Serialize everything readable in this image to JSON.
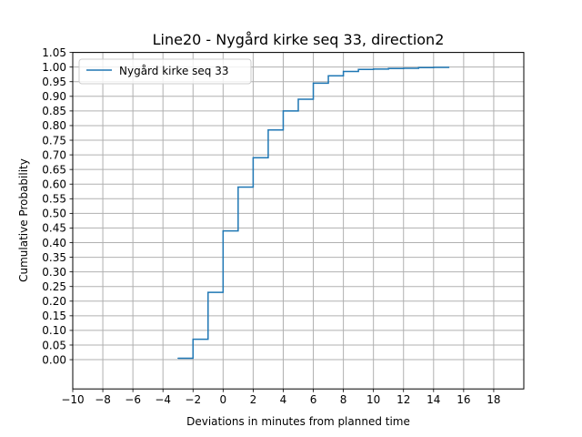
{
  "chart_data": {
    "type": "line",
    "step": "post",
    "title": "Line20 - Nygård kirke seq 33, direction2",
    "xlabel": "Deviations in minutes from planned time",
    "ylabel": "Cumulative Probability",
    "xlim": [
      -10,
      20
    ],
    "ylim": [
      -0.1,
      1.05
    ],
    "xticks": [
      -10,
      -8,
      -6,
      -4,
      -2,
      0,
      2,
      4,
      6,
      8,
      10,
      12,
      14,
      16,
      18
    ],
    "xtick_labels": [
      "−10",
      "−8",
      "−6",
      "−4",
      "−2",
      "0",
      "2",
      "4",
      "6",
      "8",
      "10",
      "12",
      "14",
      "16",
      "18"
    ],
    "yticks": [
      0.0,
      0.05,
      0.1,
      0.15,
      0.2,
      0.25,
      0.3,
      0.35,
      0.4,
      0.45,
      0.5,
      0.55,
      0.6,
      0.65,
      0.7,
      0.75,
      0.8,
      0.85,
      0.9,
      0.95,
      1.0,
      1.05
    ],
    "ytick_labels": [
      "0.00",
      "0.05",
      "0.10",
      "0.15",
      "0.20",
      "0.25",
      "0.30",
      "0.35",
      "0.40",
      "0.45",
      "0.50",
      "0.55",
      "0.60",
      "0.65",
      "0.70",
      "0.75",
      "0.80",
      "0.85",
      "0.90",
      "0.95",
      "1.00",
      "1.05"
    ],
    "grid": true,
    "legend_position": "upper-left",
    "series": [
      {
        "name": "Nygård kirke seq 33",
        "color": "#1f77b4",
        "x": [
          -3,
          -2,
          -1,
          0,
          1,
          2,
          3,
          4,
          5,
          6,
          7,
          8,
          9,
          10,
          11,
          12,
          13,
          14,
          15
        ],
        "y": [
          0.005,
          0.07,
          0.23,
          0.44,
          0.59,
          0.69,
          0.785,
          0.85,
          0.89,
          0.945,
          0.97,
          0.985,
          0.992,
          0.993,
          0.995,
          0.996,
          0.998,
          0.999,
          1.0
        ]
      }
    ]
  }
}
